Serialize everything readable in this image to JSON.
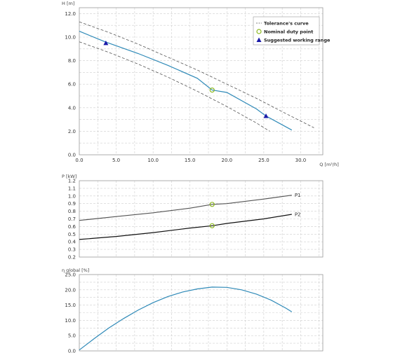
{
  "chart_data": [
    {
      "type": "line",
      "ylabel": "H [m]",
      "xlabel": "Q [m³/h]",
      "xlim": [
        0,
        33
      ],
      "ylim": [
        0,
        12.5
      ],
      "grid": true,
      "xticks": [
        0,
        5,
        10,
        15,
        20,
        25,
        30
      ],
      "xtick_labels": [
        "0.0",
        "5.0",
        "10.0",
        "15.0",
        "20.0",
        "25.0",
        "30.0"
      ],
      "yticks": [
        0,
        2,
        4,
        6,
        8,
        10,
        12
      ],
      "ytick_labels": [
        "0.0",
        "2.0",
        "4.0",
        "6.0",
        "8.0",
        "10.0",
        "12.0"
      ],
      "legend_position": "top-right",
      "legend": [
        "Tolerance's curve",
        "Nominal duty point",
        "Suggested working range"
      ],
      "series": [
        {
          "name": "Tolerance's curve",
          "color": "#555555",
          "style": "dashed",
          "x": [
            0,
            4,
            8,
            12,
            16,
            20,
            24,
            28,
            31.8
          ],
          "y": [
            11.3,
            10.4,
            9.4,
            8.3,
            7.2,
            6.0,
            4.8,
            3.5,
            2.3
          ]
        },
        {
          "name": "",
          "color": "#2f8ab8",
          "style": "solid",
          "x": [
            0,
            3.5,
            8,
            12,
            16,
            18,
            20,
            24,
            25.3,
            28.8
          ],
          "y": [
            10.5,
            9.6,
            8.6,
            7.6,
            6.5,
            5.5,
            5.3,
            3.9,
            3.3,
            2.1
          ]
        },
        {
          "name": "Tolerance's curve",
          "color": "#555555",
          "style": "dashed",
          "x": [
            0,
            4,
            8,
            12,
            16,
            20,
            24,
            25.8
          ],
          "y": [
            9.6,
            8.7,
            7.7,
            6.6,
            5.4,
            4.1,
            2.7,
            2.0
          ]
        }
      ],
      "nominal_point": {
        "x": 18.0,
        "y": 5.5,
        "color": "#8cb820"
      },
      "working_range": [
        {
          "x": 3.6,
          "y": 9.5
        },
        {
          "x": 25.3,
          "y": 3.3
        }
      ],
      "working_marker_color": "#1a1aa8"
    },
    {
      "type": "line",
      "ylabel": "P [kW]",
      "xlim": [
        0,
        33
      ],
      "ylim": [
        0.2,
        1.2
      ],
      "grid": true,
      "yticks": [
        0.2,
        0.3,
        0.4,
        0.5,
        0.6,
        0.7,
        0.8,
        0.9,
        1.0,
        1.1,
        1.2
      ],
      "ytick_labels": [
        "0.2",
        "0.3",
        "0.4",
        "0.5",
        "0.6",
        "0.7",
        "0.8",
        "0.9",
        "1.0",
        "1.1",
        "1.2"
      ],
      "series": [
        {
          "name": "P1",
          "color": "#555555",
          "x": [
            0,
            5,
            10,
            15,
            18,
            20,
            25,
            28.8
          ],
          "y": [
            0.68,
            0.73,
            0.78,
            0.84,
            0.89,
            0.9,
            0.96,
            1.01
          ]
        },
        {
          "name": "P2",
          "color": "#111111",
          "x": [
            0,
            5,
            10,
            15,
            18,
            20,
            25,
            28.8
          ],
          "y": [
            0.43,
            0.47,
            0.52,
            0.58,
            0.61,
            0.64,
            0.7,
            0.76
          ]
        }
      ],
      "nominal_points": [
        {
          "x": 18.0,
          "y": 0.89
        },
        {
          "x": 18.0,
          "y": 0.61
        }
      ],
      "nominal_color": "#8cb820"
    },
    {
      "type": "line",
      "ylabel": "η global [%]",
      "xlim": [
        0,
        33
      ],
      "ylim": [
        0,
        25
      ],
      "grid": true,
      "yticks": [
        0,
        5,
        10,
        15,
        20,
        25
      ],
      "ytick_labels": [
        "0.0",
        "5.0",
        "10.0",
        "15.0",
        "20.0",
        "25.0"
      ],
      "series": [
        {
          "name": "",
          "color": "#2f8ab8",
          "x": [
            0,
            2,
            4,
            6,
            8,
            10,
            12,
            14,
            16,
            18,
            20,
            22,
            24,
            26,
            28,
            28.8
          ],
          "y": [
            0.3,
            4.0,
            7.5,
            10.6,
            13.4,
            15.8,
            17.8,
            19.3,
            20.3,
            20.9,
            20.8,
            20.0,
            18.6,
            16.6,
            14.0,
            12.8
          ]
        }
      ]
    }
  ]
}
